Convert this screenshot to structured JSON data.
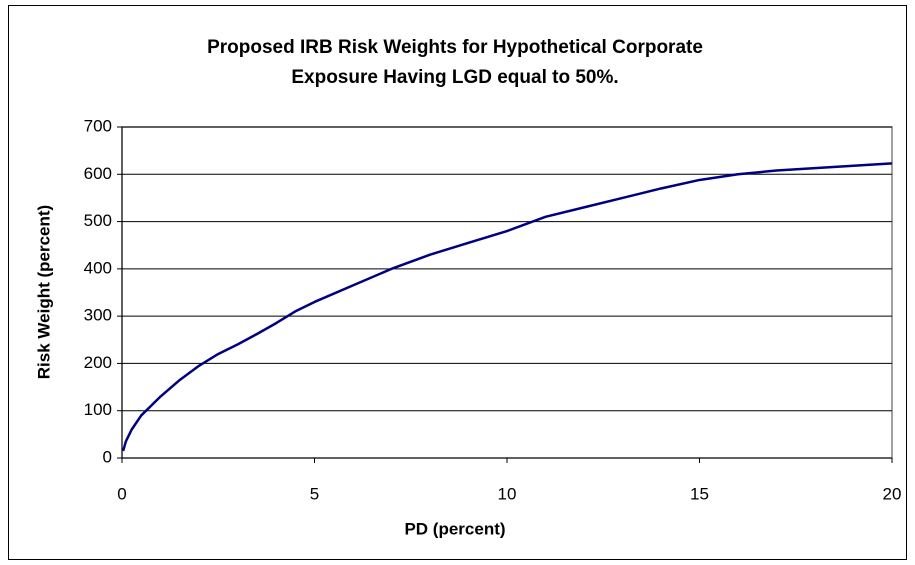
{
  "chart_data": {
    "type": "line",
    "title": [
      "Proposed IRB Risk Weights for Hypothetical Corporate",
      "Exposure Having LGD equal to 50%."
    ],
    "x_label": "PD (percent)",
    "y_label": "Risk Weight (percent)",
    "x": [
      0.03,
      0.1,
      0.25,
      0.5,
      0.75,
      1,
      1.5,
      2,
      2.5,
      3,
      3.5,
      4,
      4.5,
      5,
      6,
      7,
      8,
      9,
      10,
      11,
      12,
      13,
      14,
      15,
      16,
      17,
      18,
      19,
      20
    ],
    "series": [
      {
        "name": "Risk Weight",
        "color": "#000080",
        "values": [
          15,
          35,
          60,
          90,
          110,
          130,
          165,
          195,
          220,
          240,
          262,
          285,
          310,
          330,
          365,
          400,
          430,
          455,
          480,
          510,
          530,
          550,
          570,
          588,
          600,
          608,
          613,
          618,
          623
        ]
      }
    ],
    "xlim": [
      0,
      20
    ],
    "xticks": [
      0,
      5,
      10,
      15,
      20
    ],
    "ylim": [
      0,
      700
    ],
    "yticks": [
      0,
      100,
      200,
      300,
      400,
      500,
      600,
      700
    ],
    "grid": true
  }
}
